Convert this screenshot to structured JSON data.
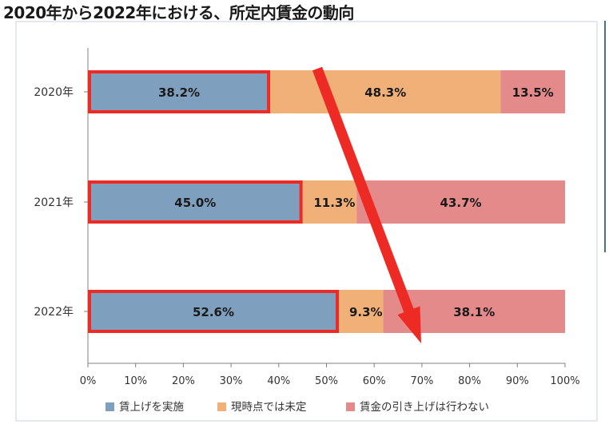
{
  "page_title": "2020年から2022年における、所定内賃金の動向",
  "colors": {
    "raise": "#7f9fbe",
    "undecided": "#f0b077",
    "no_raise": "#e58a8a",
    "highlight": "#ee2a24",
    "arrow": "#ee2a24",
    "plot_border": "#c8d3dd",
    "axis": "#808080"
  },
  "chart_data": {
    "type": "bar",
    "orientation": "horizontal",
    "stacked": true,
    "title": "",
    "xlabel": "",
    "ylabel": "",
    "xlim": [
      0,
      100
    ],
    "x_ticks": [
      "0%",
      "10%",
      "20%",
      "30%",
      "40%",
      "50%",
      "60%",
      "70%",
      "80%",
      "90%",
      "100%"
    ],
    "grid": false,
    "legend_position": "bottom",
    "categories": [
      "2020年",
      "2021年",
      "2022年"
    ],
    "series": [
      {
        "name": "賃上げを実施",
        "values": [
          38.2,
          45.0,
          52.6
        ],
        "labels": [
          "38.2%",
          "45.0%",
          "52.6%"
        ],
        "color": "#7f9fbe"
      },
      {
        "name": "現時点では未定",
        "values": [
          48.3,
          11.3,
          9.3
        ],
        "labels": [
          "48.3%",
          "11.3%",
          "9.3%"
        ],
        "color": "#f0b077"
      },
      {
        "name": "賃金の引き上げは行わない",
        "values": [
          13.5,
          43.7,
          38.1
        ],
        "labels": [
          "13.5%",
          "43.7%",
          "38.1%"
        ],
        "color": "#e58a8a"
      }
    ],
    "annotations": {
      "highlighted_series": "賃上げを実施",
      "arrow": {
        "from": {
          "category": "2020年",
          "value": 48
        },
        "to": {
          "category": "2022年",
          "value": 70
        }
      }
    }
  }
}
